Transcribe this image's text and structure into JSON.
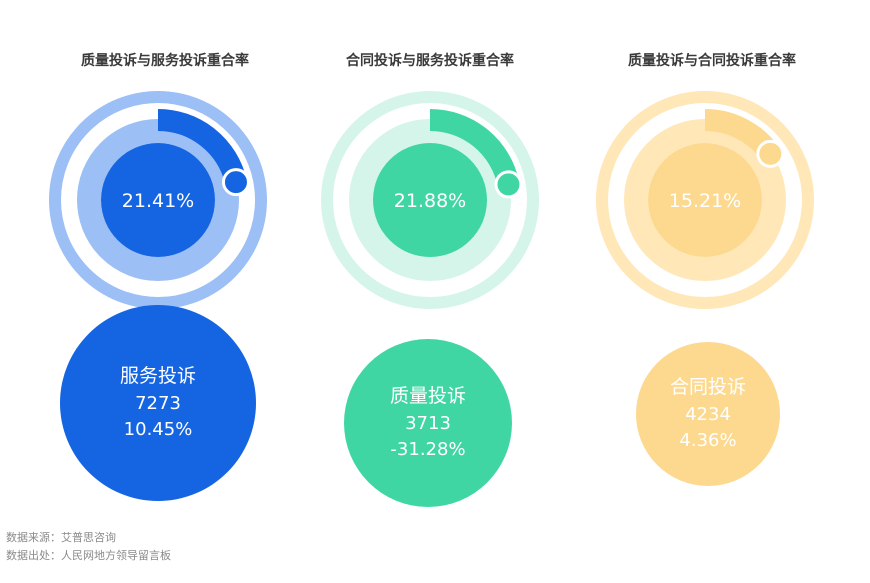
{
  "chart_data": [
    {
      "type": "gauge",
      "title": "质量投诉与服务投诉重合率",
      "value": 21.41,
      "value_label": "21.41%",
      "colors": {
        "track": "#9cbff5",
        "arc": "#1565e3",
        "core": "#1565e3"
      }
    },
    {
      "type": "gauge",
      "title": "合同投诉与服务投诉重合率",
      "value": 21.88,
      "value_label": "21.88%",
      "colors": {
        "track": "#d6f5ea",
        "arc": "#40d6a4",
        "core": "#40d6a4"
      }
    },
    {
      "type": "gauge",
      "title": "质量投诉与合同投诉重合率",
      "value": 15.21,
      "value_label": "15.21%",
      "colors": {
        "track": "#ffe7b8",
        "arc": "#fcd98f",
        "core": "#fcd98f"
      }
    },
    {
      "type": "bubble",
      "items": [
        {
          "label": "服务投诉",
          "count": "7273",
          "change": "10.45%",
          "color": "#1565e3"
        },
        {
          "label": "质量投诉",
          "count": "3713",
          "change": "-31.28%",
          "color": "#40d6a4"
        },
        {
          "label": "合同投诉",
          "count": "4234",
          "change": "4.36%",
          "color": "#fcd98f"
        }
      ]
    }
  ],
  "footer": {
    "source_line": "数据来源：艾普思咨询",
    "origin_line": "数据出处：人民网地方领导留言板"
  }
}
